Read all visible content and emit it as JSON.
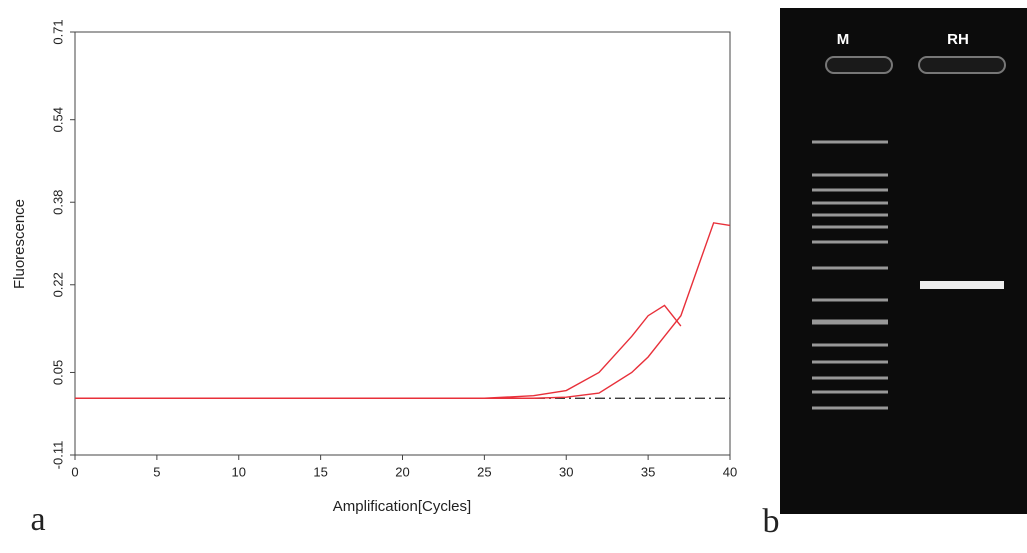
{
  "chart_data": {
    "type": "line",
    "x_label": "Amplification[Cycles]",
    "y_label": "Fluorescence",
    "x": [
      0,
      5,
      10,
      15,
      20,
      25,
      28,
      30,
      32,
      34,
      35,
      36,
      37,
      38,
      39,
      40
    ],
    "series": [
      {
        "color": "#e8303a",
        "values": [
          0,
          0,
          0,
          0,
          0,
          0,
          0.005,
          0.015,
          0.05,
          0.12,
          0.16,
          0.18,
          0.14,
          null,
          null,
          null
        ]
      },
      {
        "color": "#e8303a",
        "values": [
          0,
          0,
          0,
          0,
          0,
          0,
          0,
          0.002,
          0.01,
          0.05,
          0.08,
          0.12,
          0.16,
          0.25,
          0.34,
          0.335
        ]
      }
    ],
    "threshold": 0,
    "xlim": [
      0,
      40
    ],
    "xticks": [
      0,
      5,
      10,
      15,
      20,
      25,
      30,
      35,
      40
    ],
    "ylim": [
      -0.11,
      0.71
    ],
    "yticks": [
      -0.11,
      0.05,
      0.22,
      0.38,
      0.54,
      0.71
    ]
  },
  "figure": {
    "panels": [
      "a",
      "b"
    ],
    "gel_lanes": [
      "M",
      "RH"
    ]
  }
}
